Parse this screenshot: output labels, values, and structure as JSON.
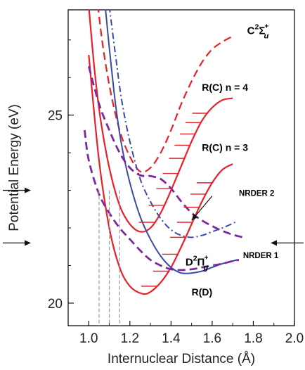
{
  "chart_data": {
    "type": "line",
    "title": "",
    "xlabel": "Internuclear Distance (Å)",
    "ylabel": "Potential Energy (eV)",
    "xlim": [
      0.9,
      2.0
    ],
    "ylim": [
      19.4,
      27.8
    ],
    "xticks": [
      1.0,
      1.2,
      1.4,
      1.6,
      1.8,
      2.0
    ],
    "xtick_labels": [
      "1.0",
      "1.2",
      "1.4",
      "1.6",
      "1.8",
      "2.0"
    ],
    "yticks": [
      20,
      25
    ],
    "ytick_labels": [
      "20",
      "25"
    ],
    "grid": false,
    "colors": {
      "red": "#e8202a",
      "blue": "#3a4aa8",
      "purple": "#7a2aa0",
      "gray": "#9a9a9a",
      "black": "#111111"
    },
    "series": [
      {
        "label_id": "c2su",
        "color": "red",
        "style": "dashed",
        "x": [
          1.02,
          1.06,
          1.1,
          1.15,
          1.2,
          1.25,
          1.3,
          1.35,
          1.4,
          1.45,
          1.5,
          1.55,
          1.6,
          1.65,
          1.7
        ],
        "y": [
          29.2,
          27.2,
          25.8,
          24.6,
          23.9,
          23.5,
          23.6,
          24.0,
          24.6,
          25.3,
          25.9,
          26.4,
          26.75,
          26.95,
          27.1
        ]
      },
      {
        "label_id": "rc4",
        "color": "red",
        "style": "solid",
        "x": [
          1.0,
          1.03,
          1.06,
          1.1,
          1.15,
          1.2,
          1.25,
          1.3,
          1.35,
          1.4,
          1.45,
          1.5,
          1.55,
          1.6,
          1.65,
          1.7
        ],
        "y": [
          27.9,
          26.1,
          24.8,
          23.6,
          22.6,
          22.1,
          21.9,
          22.0,
          22.4,
          23.0,
          23.65,
          24.3,
          24.85,
          25.2,
          25.4,
          25.45
        ]
      },
      {
        "label_id": "rc3",
        "color": "red",
        "style": "solid",
        "x": [
          1.0,
          1.05,
          1.1,
          1.15,
          1.2,
          1.26,
          1.3,
          1.35,
          1.4,
          1.45,
          1.5,
          1.55,
          1.6,
          1.65,
          1.7
        ],
        "y": [
          26.6,
          23.8,
          22.0,
          20.95,
          20.45,
          20.25,
          20.3,
          20.55,
          20.95,
          21.5,
          22.1,
          22.7,
          23.2,
          23.55,
          23.7
        ]
      },
      {
        "label_id": "d2pg",
        "color": "blue",
        "style": "solid",
        "x": [
          1.08,
          1.1,
          1.13,
          1.16,
          1.2,
          1.25,
          1.3,
          1.35,
          1.4,
          1.45,
          1.5,
          1.55,
          1.6,
          1.65,
          1.7,
          1.72
        ],
        "y": [
          27.9,
          26.8,
          25.3,
          24.2,
          23.2,
          22.3,
          21.7,
          21.25,
          20.95,
          20.8,
          20.8,
          20.85,
          20.95,
          21.05,
          21.12,
          21.15
        ]
      },
      {
        "label_id": "rd",
        "color": "blue",
        "style": "dashdot",
        "x": [
          1.1,
          1.13,
          1.16,
          1.2,
          1.25,
          1.3,
          1.35,
          1.4,
          1.45,
          1.5,
          1.55,
          1.6,
          1.65,
          1.7,
          1.72
        ],
        "y": [
          27.9,
          26.6,
          25.4,
          24.3,
          23.3,
          22.7,
          22.25,
          21.95,
          21.8,
          21.75,
          21.8,
          21.9,
          22.0,
          22.12,
          22.18
        ]
      },
      {
        "label_id": "nrder2",
        "color": "purple",
        "style": "dashed",
        "x": [
          1.0,
          1.05,
          1.1,
          1.15,
          1.2,
          1.25,
          1.3,
          1.35,
          1.4,
          1.45,
          1.5,
          1.55,
          1.6,
          1.65,
          1.7,
          1.75
        ],
        "y": [
          26.3,
          25.3,
          24.6,
          24.0,
          23.6,
          23.4,
          23.38,
          23.3,
          23.05,
          22.7,
          22.4,
          22.2,
          22.05,
          21.92,
          21.82,
          21.75
        ]
      },
      {
        "label_id": "nrder1",
        "color": "purple",
        "style": "dashed",
        "x": [
          0.98,
          1.0,
          1.05,
          1.1,
          1.15,
          1.2,
          1.25,
          1.3,
          1.35,
          1.4,
          1.45,
          1.5,
          1.55,
          1.6,
          1.65,
          1.7,
          1.73
        ],
        "y": [
          24.6,
          23.8,
          22.9,
          22.4,
          22.0,
          21.7,
          21.4,
          21.15,
          21.0,
          20.9,
          20.88,
          20.9,
          20.95,
          21.0,
          21.05,
          21.12,
          21.15
        ]
      }
    ],
    "vibrational_levels": [
      {
        "curve": "rc4",
        "y": [
          22.15,
          22.6,
          23.05,
          23.45,
          23.85,
          24.2,
          24.5,
          24.8,
          25.05
        ]
      },
      {
        "curve": "rc3",
        "y": [
          20.45,
          20.85,
          21.3,
          21.75,
          22.15,
          22.55,
          22.9,
          23.2
        ]
      }
    ],
    "dashed_verticals": [
      {
        "x": 1.05,
        "y": 23.0
      },
      {
        "x": 1.1,
        "y": 23.0
      },
      {
        "x": 1.15,
        "y": 23.0
      }
    ],
    "left_arrows": [
      {
        "y": 23.0
      },
      {
        "y": 21.6
      }
    ],
    "right_arrows": [
      {
        "y": 21.6
      }
    ],
    "annotations": [
      {
        "id": "c2su",
        "x": 1.77,
        "y": 27.15
      },
      {
        "id": "rc4",
        "x": 1.55,
        "y": 25.65
      },
      {
        "id": "rc3",
        "x": 1.55,
        "y": 24.05
      },
      {
        "id": "d2pg",
        "x": 1.47,
        "y": 21.0
      },
      {
        "id": "rd",
        "x": 1.5,
        "y": 20.2
      },
      {
        "id": "nrder2",
        "x": 1.73,
        "y": 22.85
      },
      {
        "id": "nrder1",
        "x": 1.75,
        "y": 21.2
      }
    ],
    "labels": {
      "c2su": {
        "main": "C",
        "sup": "2",
        "greek": "Σ",
        "sub": "u",
        "greek_sup": "+"
      },
      "rc4": "R(C) n = 4",
      "rc3": "R(C) n = 3",
      "d2pg": {
        "main": "D",
        "sup": "2",
        "greek": "Π",
        "sub": "g",
        "greek_sup": "+"
      },
      "rd": "R(D)",
      "nrder2": "NRDER 2",
      "nrder1": "NRDER 1"
    },
    "pointer_arrows": [
      {
        "from": [
          1.6,
          22.85
        ],
        "to": [
          1.5,
          22.2
        ]
      }
    ]
  }
}
